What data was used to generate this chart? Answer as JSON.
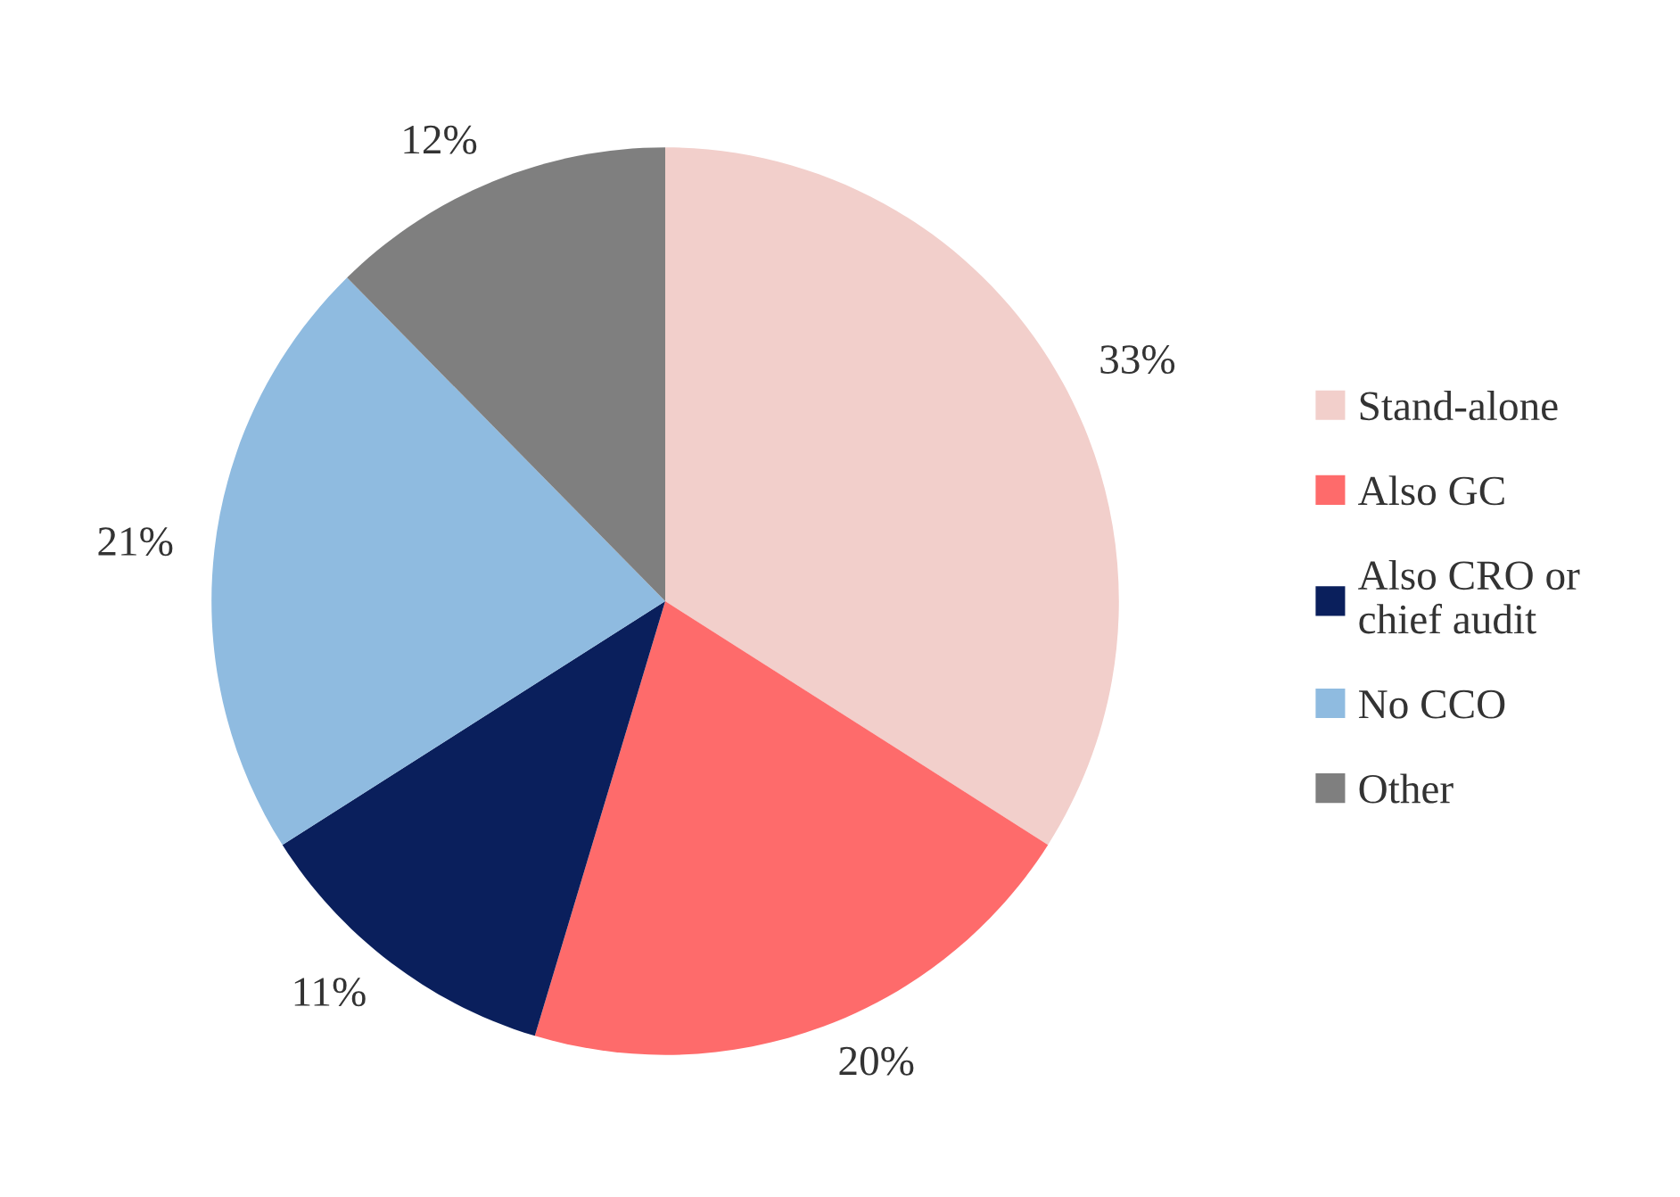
{
  "chart_data": {
    "type": "pie",
    "categories": [
      "Stand-alone",
      "Also GC",
      "Also CRO or\nchief audit",
      "No CCO",
      "Other"
    ],
    "values": [
      33,
      20,
      11,
      21,
      12
    ],
    "value_labels": [
      "33%",
      "20%",
      "11%",
      "21%",
      "12%"
    ],
    "colors": [
      "#f2cfcb",
      "#fe6b6b",
      "#0a1f5c",
      "#8fbbe0",
      "#7f7f7f"
    ],
    "legend": "right"
  }
}
